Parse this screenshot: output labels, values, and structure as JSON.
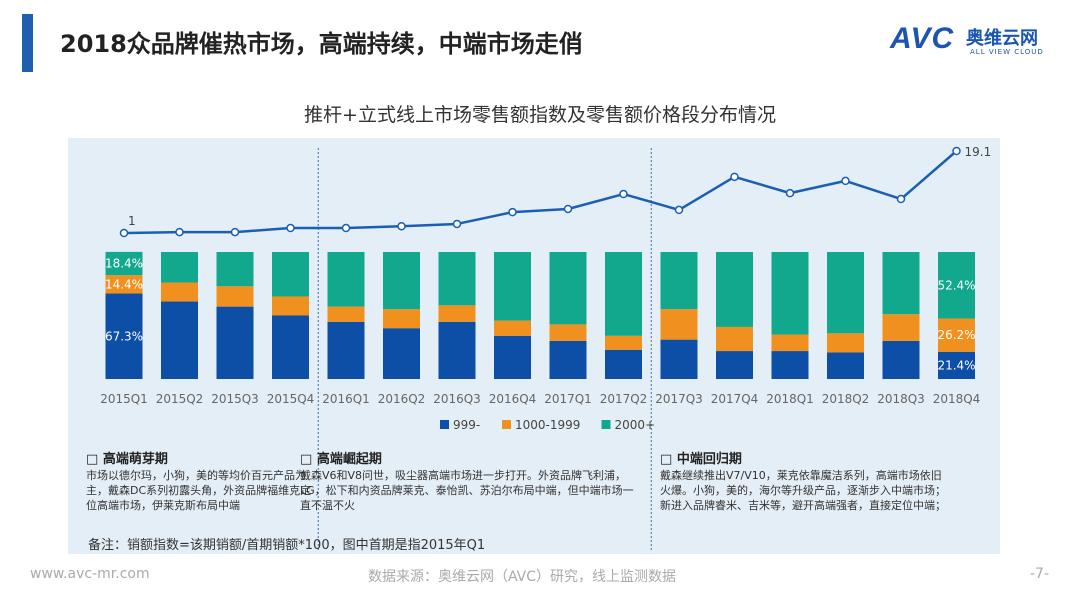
{
  "header": {
    "title": "2018众品牌催热市场，高端持续，中端市场走俏"
  },
  "logo": {
    "mark": "AVC",
    "cn": "奥维云网",
    "en": "ALL VIEW CLOUD"
  },
  "colors": {
    "blue": "#0d4ea6",
    "orange": "#f0901e",
    "green": "#12a88e",
    "line": "#1a5fb4"
  },
  "chart_data": {
    "type": "bar+line",
    "title": "推杆+立式线上市场零售额指数及零售额价格段分布情况",
    "categories": [
      "2015Q1",
      "2015Q2",
      "2015Q3",
      "2015Q4",
      "2016Q1",
      "2016Q2",
      "2016Q3",
      "2016Q4",
      "2017Q1",
      "2017Q2",
      "2017Q3",
      "2017Q4",
      "2018Q1",
      "2018Q2",
      "2018Q3",
      "2018Q4"
    ],
    "index_line": {
      "values": [
        1,
        1.2,
        1.2,
        2.1,
        2.1,
        2.5,
        3.0,
        5.6,
        6.3,
        9.6,
        6.1,
        13.4,
        9.8,
        12.5,
        8.5,
        19.1
      ],
      "labels": [
        "1",
        "19.1"
      ]
    },
    "series": [
      {
        "name": "999-",
        "values": [
          67.3,
          61,
          57,
          50,
          45,
          40,
          45,
          34,
          30,
          23,
          31,
          22,
          22,
          21,
          30,
          21.4
        ]
      },
      {
        "name": "1000-1999",
        "values": [
          14.4,
          15,
          16,
          15,
          12,
          15,
          13,
          12,
          13,
          11,
          24,
          19,
          13,
          15,
          21,
          26.2
        ]
      },
      {
        "name": "2000+",
        "values": [
          18.4,
          24,
          27,
          35,
          43,
          45,
          42,
          54,
          57,
          66,
          45,
          59,
          65,
          64,
          49,
          52.4
        ]
      }
    ],
    "data_labels": {
      "first": [
        "67.3%",
        "14.4%",
        "18.4%"
      ],
      "last": [
        "21.4%",
        "26.2%",
        "52.4%"
      ]
    },
    "legend_position": "bottom"
  },
  "sections": [
    {
      "title": "高端萌芽期",
      "text": "市场以德尔玛，小狗，美的等均价百元产品为主，戴森DC系列初露头角，外资品牌福维克定位高端市场，伊莱克斯布局中端"
    },
    {
      "title": "高端崛起期",
      "text": "戴森V6和V8问世，吸尘器高端市场进一步打开。外资品牌飞利浦，LG，松下和内资品牌莱克、泰怡凯、苏泊尔布局中端，但中端市场一直不温不火"
    },
    {
      "title": "中端回归期",
      "text": "戴森继续推出V7/V10，莱克依靠魔洁系列，高端市场依旧火爆。小狗，美的，海尔等升级产品，逐渐步入中端市场；新进入品牌睿米、吉米等，避开高端强者，直接定位中端；"
    }
  ],
  "note": "备注：销额指数=该期销额/首期销额*100，图中首期是指2015年Q1",
  "footer": {
    "url": "www.avc-mr.com",
    "source": "数据来源：奥维云网（AVC）研究，线上监测数据",
    "page": "-7-"
  }
}
